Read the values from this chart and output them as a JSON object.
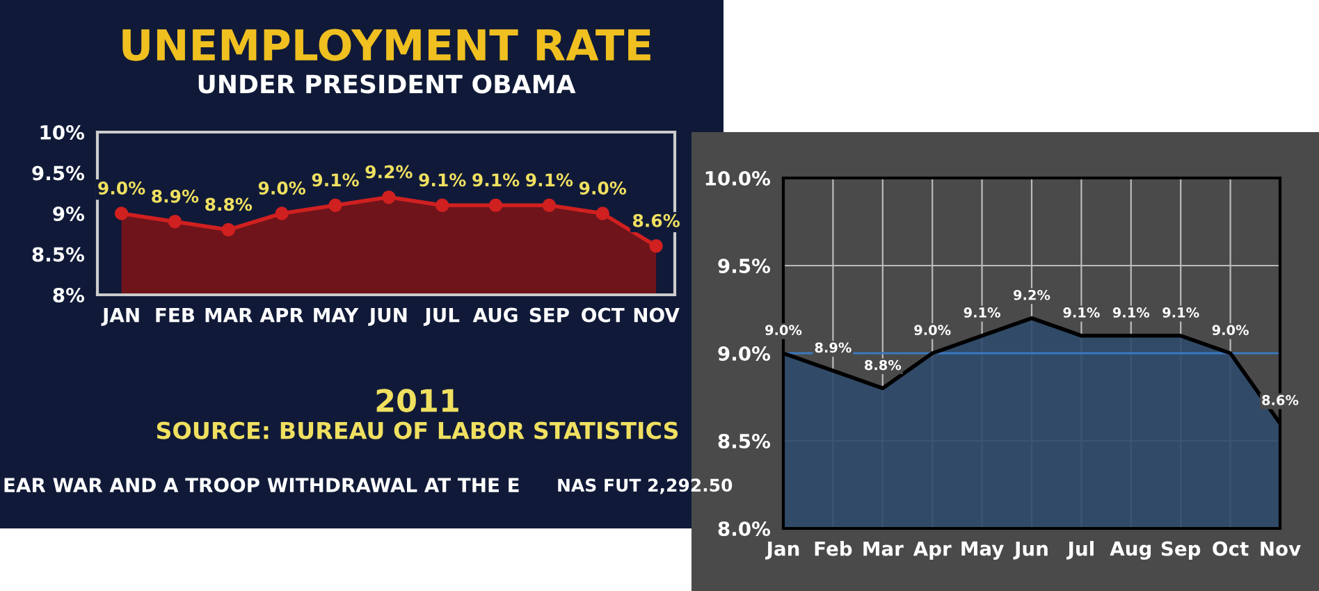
{
  "chart_data": [
    {
      "type": "area",
      "title": "UNEMPLOYMENT RATE",
      "subtitle": "UNDER PRESIDENT OBAMA",
      "categories": [
        "JAN",
        "FEB",
        "MAR",
        "APR",
        "MAY",
        "JUN",
        "JUL",
        "AUG",
        "SEP",
        "OCT",
        "NOV"
      ],
      "values": [
        9.0,
        8.9,
        8.8,
        9.0,
        9.1,
        9.2,
        9.1,
        9.1,
        9.1,
        9.0,
        8.6
      ],
      "value_labels": [
        "9.0%",
        "8.9%",
        "8.8%",
        "9.0%",
        "9.1%",
        "9.2%",
        "9.1%",
        "9.1%",
        "9.1%",
        "9.0%",
        "8.6%"
      ],
      "color": "#7a1418",
      "marker": "circle",
      "grid": false,
      "ylim": [
        8,
        10
      ],
      "yticks": [
        {
          "value": 8,
          "label": "8%"
        },
        {
          "value": 8.5,
          "label": "8.5%"
        },
        {
          "value": 9,
          "label": "9%"
        },
        {
          "value": 9.5,
          "label": "9.5%"
        },
        {
          "value": 10,
          "label": "10%"
        }
      ],
      "annotations": [
        "2011",
        "SOURCE: BUREAU OF LABOR STATISTICS",
        "EAR WAR AND A TROOP WITHDRAWAL AT THE E",
        "NAS FUT 2,292.50"
      ]
    },
    {
      "type": "area",
      "categories": [
        "Jan",
        "Feb",
        "Mar",
        "Apr",
        "May",
        "Jun",
        "Jul",
        "Aug",
        "Sep",
        "Oct",
        "Nov"
      ],
      "values": [
        9.0,
        8.9,
        8.8,
        9.0,
        9.1,
        9.2,
        9.1,
        9.1,
        9.1,
        9.0,
        8.6
      ],
      "value_labels": [
        "9.0%",
        "8.9%",
        "8.8%",
        "9.0%",
        "9.1%",
        "9.2%",
        "9.1%",
        "9.1%",
        "9.1%",
        "9.0%",
        "8.6%"
      ],
      "color": "#2e4a6b",
      "marker": "none",
      "grid": true,
      "ylim": [
        8,
        10
      ],
      "yticks": [
        {
          "value": 8,
          "label": "8.0%"
        },
        {
          "value": 8.5,
          "label": "8.5%"
        },
        {
          "value": 9,
          "label": "9.0%"
        },
        {
          "value": 9.5,
          "label": "9.5%"
        },
        {
          "value": 10,
          "label": "10.0%"
        }
      ],
      "ref_lines": [
        {
          "axis": "y",
          "value": 9,
          "color": "#3a78c0"
        }
      ]
    }
  ]
}
